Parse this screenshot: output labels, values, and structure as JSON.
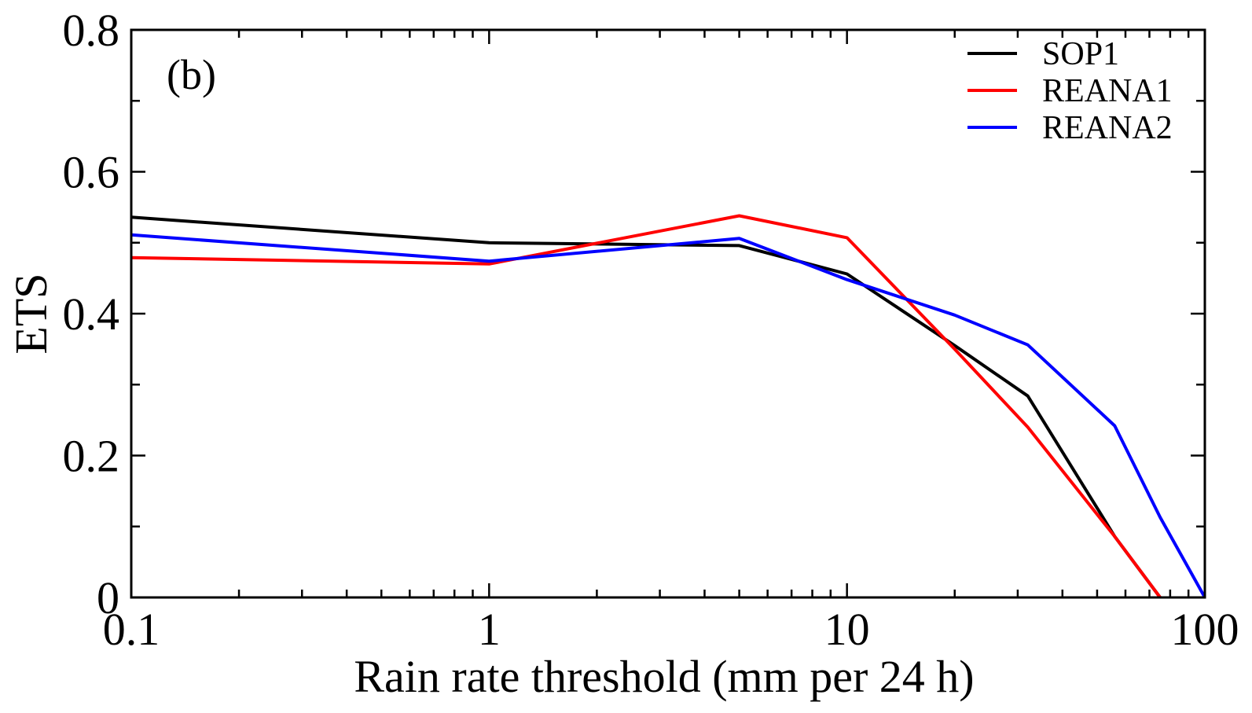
{
  "chart_data": {
    "type": "line",
    "title": "",
    "panel_label": "(b)",
    "xlabel": "Rain rate threshold (mm per 24 h)",
    "ylabel": "ETS",
    "x_scale": "log",
    "xlim": [
      0.1,
      100
    ],
    "ylim": [
      0,
      0.8
    ],
    "x_ticks": [
      {
        "value": 0.1,
        "label": "0.1"
      },
      {
        "value": 1,
        "label": "1"
      },
      {
        "value": 10,
        "label": "10"
      },
      {
        "value": 100,
        "label": "100"
      }
    ],
    "y_ticks": [
      {
        "value": 0,
        "label": "0"
      },
      {
        "value": 0.2,
        "label": "0.2"
      },
      {
        "value": 0.4,
        "label": "0.4"
      },
      {
        "value": 0.6,
        "label": "0.6"
      },
      {
        "value": 0.8,
        "label": "0.8"
      }
    ],
    "y_minor_ticks": [
      0.1,
      0.3,
      0.5,
      0.7
    ],
    "grid": false,
    "legend_position": "top-right",
    "series": [
      {
        "name": "SOP1",
        "color": "#000000",
        "points": [
          [
            0.1,
            0.536
          ],
          [
            1,
            0.5
          ],
          [
            5,
            0.496
          ],
          [
            10,
            0.456
          ],
          [
            20,
            0.355
          ],
          [
            32,
            0.284
          ],
          [
            56,
            0.086
          ],
          [
            75,
            0.0
          ]
        ]
      },
      {
        "name": "REANA1",
        "color": "#ff0000",
        "points": [
          [
            0.1,
            0.479
          ],
          [
            1,
            0.47
          ],
          [
            5,
            0.538
          ],
          [
            10,
            0.507
          ],
          [
            20,
            0.35
          ],
          [
            32,
            0.24
          ],
          [
            56,
            0.086
          ],
          [
            75,
            0.0
          ]
        ]
      },
      {
        "name": "REANA2",
        "color": "#0000ff",
        "points": [
          [
            0.1,
            0.511
          ],
          [
            1,
            0.474
          ],
          [
            5,
            0.506
          ],
          [
            10,
            0.448
          ],
          [
            20,
            0.398
          ],
          [
            32,
            0.356
          ],
          [
            56,
            0.242
          ],
          [
            75,
            0.113
          ],
          [
            100,
            0.0
          ]
        ]
      }
    ]
  }
}
